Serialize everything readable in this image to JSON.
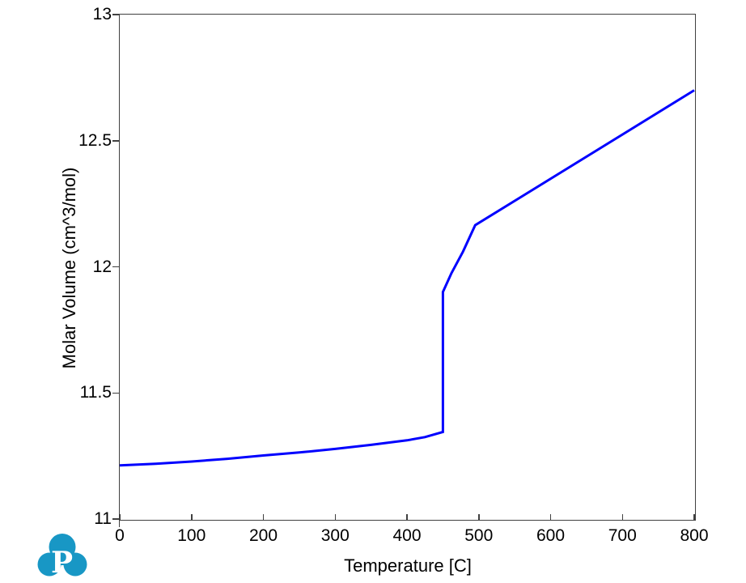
{
  "page": {
    "background": "#ffffff"
  },
  "chart_data": {
    "type": "line",
    "title": "",
    "xlabel": "Temperature [C]",
    "ylabel": "Molar Volume (cm^3/mol)",
    "xlim": [
      0,
      800
    ],
    "ylim": [
      11,
      13
    ],
    "x_ticks": [
      0,
      100,
      200,
      300,
      400,
      500,
      600,
      700,
      800
    ],
    "x_tick_labels": [
      "0",
      "100",
      "200",
      "300",
      "400",
      "500",
      "600",
      "700",
      "800"
    ],
    "y_ticks": [
      13,
      12.5,
      12,
      11.5,
      11
    ],
    "y_tick_labels": [
      "13",
      "12.5",
      "12",
      "11.5",
      "11"
    ],
    "grid": false,
    "legend": "none",
    "axis_color": "#404040",
    "line_color": "#0000FE",
    "line_width": 3,
    "series": [
      {
        "color": "#0000FE",
        "points": [
          [
            0,
            11.213
          ],
          [
            50,
            11.219
          ],
          [
            100,
            11.228
          ],
          [
            150,
            11.239
          ],
          [
            200,
            11.252
          ],
          [
            250,
            11.264
          ],
          [
            300,
            11.278
          ],
          [
            350,
            11.294
          ],
          [
            400,
            11.312
          ],
          [
            425,
            11.325
          ],
          [
            450,
            11.345
          ],
          [
            450,
            11.9
          ],
          [
            462,
            11.975
          ],
          [
            478,
            12.06
          ],
          [
            495,
            12.165
          ],
          [
            800,
            12.7
          ]
        ]
      }
    ]
  },
  "logo": {
    "letter": "P",
    "color": "#1897C5",
    "letter_color": "#ffffff"
  }
}
